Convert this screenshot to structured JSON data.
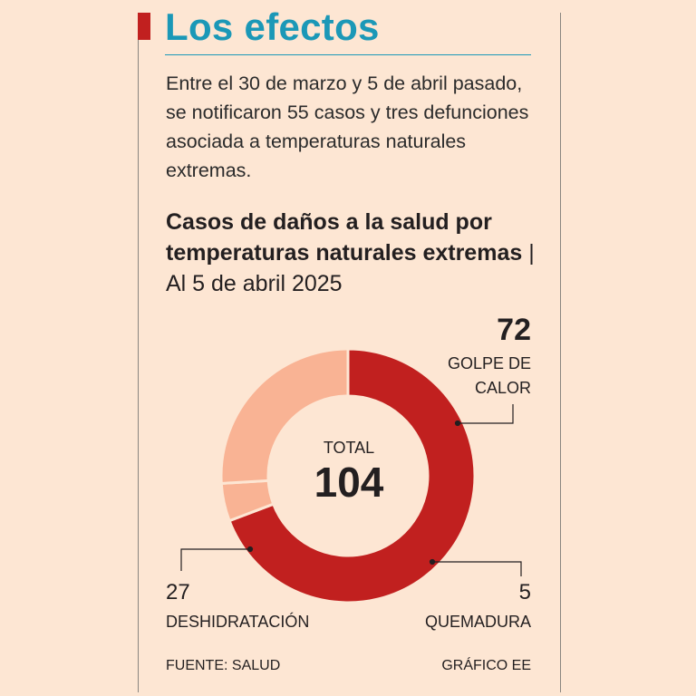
{
  "heading": "Los efectos",
  "intro": "Entre el 30 de marzo y 5 de abril pasado, se notificaron 55 casos y tres defunciones asociada a temperaturas naturales extremas.",
  "chart_data": {
    "type": "pie",
    "title": "Casos de daños a la salud por temperaturas naturales extremas",
    "subtitle": "Al 5 de abril 2025",
    "center_label": "TOTAL",
    "center_value": "104",
    "slices": [
      {
        "label": "GOLPE DE CALOR",
        "value": 72,
        "color": "#c1201f"
      },
      {
        "label": "QUEMADURA",
        "value": 5,
        "color": "#f9b394"
      },
      {
        "label": "DESHIDRATACIÓN",
        "value": 27,
        "color": "#f9b394"
      }
    ]
  },
  "labels": {
    "golpe_value": "72",
    "golpe_name": "GOLPE DE CALOR",
    "desh_value": "27",
    "desh_name": "DESHIDRATACIÓN",
    "quem_value": "5",
    "quem_name": "QUEMADURA"
  },
  "footer": {
    "source": "FUENTE: SALUD",
    "credit": "GRÁFICO EE"
  }
}
